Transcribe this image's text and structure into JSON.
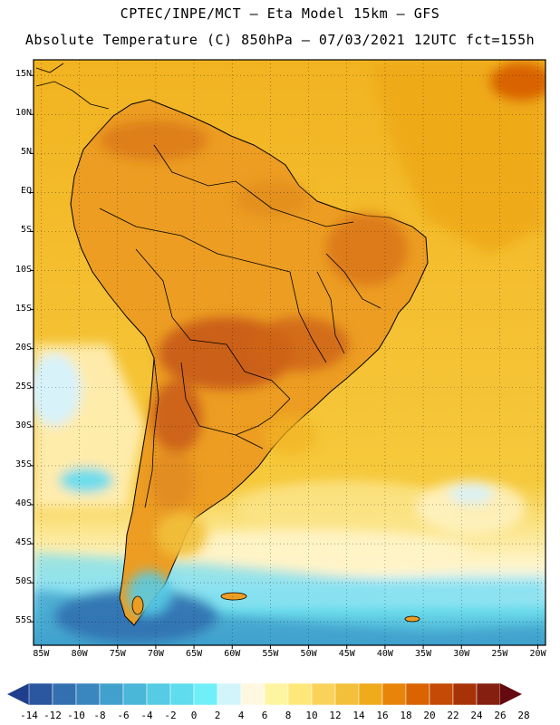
{
  "header": {
    "line1": "CPTEC/INPE/MCT –  Eta Model 15km – GFS",
    "line2": "Absolute Temperature (C) 850hPa – 07/03/2021 12UTC fct=155h"
  },
  "map": {
    "lat_labels": [
      "15N",
      "10N",
      "5N",
      "EQ",
      "5S",
      "10S",
      "15S",
      "20S",
      "25S",
      "30S",
      "35S",
      "40S",
      "45S",
      "50S",
      "55S"
    ],
    "lon_labels": [
      "85W",
      "80W",
      "75W",
      "70W",
      "65W",
      "60W",
      "55W",
      "50W",
      "45W",
      "40W",
      "35W",
      "30W",
      "25W",
      "20W"
    ],
    "lon_range": [
      -86,
      -19
    ],
    "lat_range": [
      -58,
      17
    ],
    "grid": "dotted"
  },
  "colorbar": {
    "labels": [
      "-14",
      "-12",
      "-10",
      "-8",
      "-6",
      "-4",
      "-2",
      "0",
      "2",
      "4",
      "6",
      "8",
      "10",
      "12",
      "14",
      "16",
      "18",
      "20",
      "22",
      "24",
      "26",
      "28"
    ],
    "colors": [
      "#1f3f8c",
      "#2b56a0",
      "#3270b0",
      "#3a86bf",
      "#42a0cc",
      "#4ab6d8",
      "#56cbe4",
      "#5fdcee",
      "#6ff0f8",
      "#d2f4fb",
      "#fff8e0",
      "#fff5a0",
      "#ffe77a",
      "#fad25a",
      "#f2c03a",
      "#f0ab1c",
      "#e8840a",
      "#d96400",
      "#c44a05",
      "#a83208",
      "#852010",
      "#650a10"
    ]
  }
}
